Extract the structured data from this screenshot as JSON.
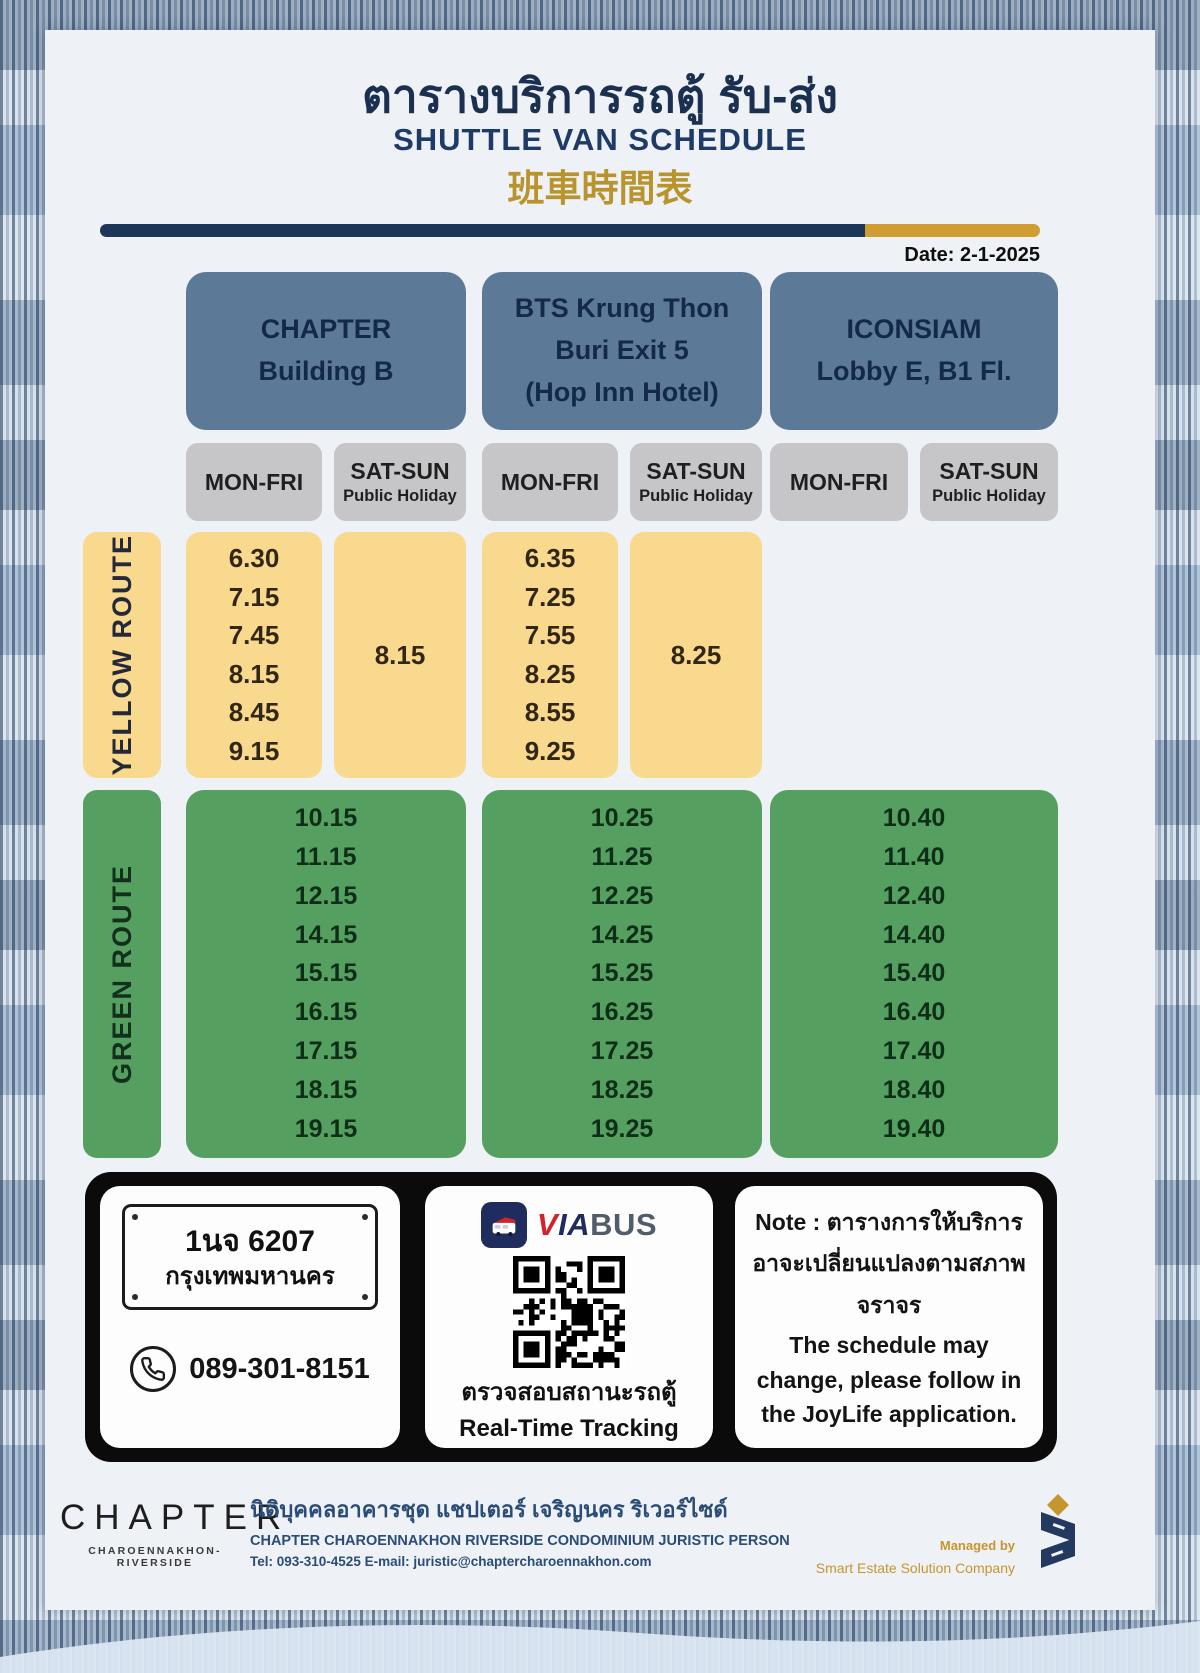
{
  "poster": {
    "title_thai": "ตารางบริการรถตู้ รับ-ส่ง",
    "title_english": "SHUTTLE VAN SCHEDULE",
    "title_chinese": "班車時間表",
    "date": "Date: 2-1-2025"
  },
  "columns": {
    "locations": [
      {
        "label": "CHAPTER\nBuilding B"
      },
      {
        "label": "BTS Krung Thon\nBuri Exit 5\n(Hop Inn Hotel)"
      },
      {
        "label": "ICONSIAM\nLobby E, B1 Fl."
      }
    ],
    "day_headers": {
      "weekday": "MON-FRI",
      "weekend_line1": "SAT-SUN",
      "weekend_line2": "Public Holiday"
    }
  },
  "routes": {
    "yellow": {
      "label": "YELLOW ROUTE",
      "chapter_weekday": [
        "6.30",
        "7.15",
        "7.45",
        "8.15",
        "8.45",
        "9.15"
      ],
      "chapter_weekend": "8.15",
      "bts_weekday": [
        "6.35",
        "7.25",
        "7.55",
        "8.25",
        "8.55",
        "9.25"
      ],
      "bts_weekend": "8.25"
    },
    "green": {
      "label": "GREEN ROUTE",
      "chapter": [
        "10.15",
        "11.15",
        "12.15",
        "14.15",
        "15.15",
        "16.15",
        "17.15",
        "18.15",
        "19.15"
      ],
      "bts": [
        "10.25",
        "11.25",
        "12.25",
        "14.25",
        "15.25",
        "16.25",
        "17.25",
        "18.25",
        "19.25"
      ],
      "iconsiam": [
        "10.40",
        "11.40",
        "12.40",
        "14.40",
        "15.40",
        "16.40",
        "17.40",
        "18.40",
        "19.40"
      ]
    }
  },
  "info": {
    "plate_line1": "1นจ 6207",
    "plate_line2": "กรุงเทพมหานคร",
    "phone": "089-301-8151",
    "brand_v": "V",
    "brand_ia": "IA",
    "brand_bus": "BUS",
    "tracking_thai": "ตรวจสอบสถานะรถตู้",
    "tracking_english": "Real-Time Tracking",
    "note_thai": "Note : ตารางการให้บริการ อาจะเปลี่ยนแปลงตามสภาพ จราจร",
    "note_english": "The schedule may change, please follow in the JoyLife application."
  },
  "footer": {
    "brand": "CHAPTER",
    "brand_sub": "CHAROENNAKHON-RIVERSIDE",
    "juristic_thai": "นิติบุคคลอาคารชุด แชปเตอร์ เจริญนคร ริเวอร์ไซด์",
    "juristic_english": "CHAPTER CHAROENNAKHON RIVERSIDE CONDOMINIUM JURISTIC PERSON",
    "contact": "Tel: 093-310-4525 E-mail: juristic@chaptercharoennakhon.com",
    "managed_by": "Managed by",
    "company": "Smart Estate Solution Company"
  },
  "colors": {
    "navy": "#1c3659",
    "gold": "#cf9d33",
    "slate_header": "#5d7998",
    "yellow": "#f8d98e",
    "green": "#55a061",
    "gray": "#c6c6c9",
    "black_band": "#0b0b0b",
    "viabus_red": "#d2232a",
    "viabus_navy": "#1e2c5e"
  }
}
